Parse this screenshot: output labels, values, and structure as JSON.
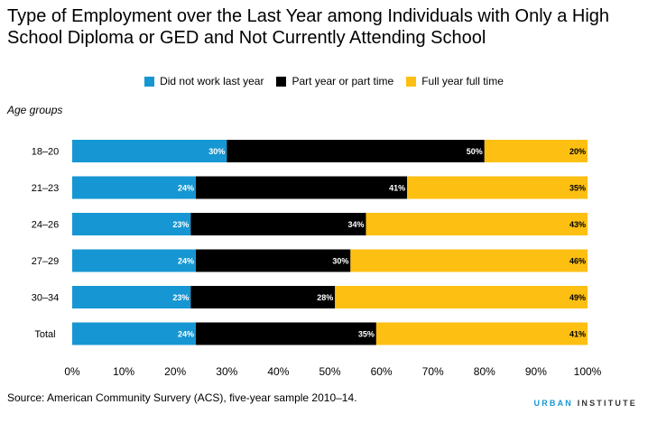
{
  "header": {
    "title": "Type of Employment over the Last Year among Individuals with Only a High School Diploma or GED and Not Currently Attending School"
  },
  "colors": {
    "did_not_work": "#1696d2",
    "part_year": "#000000",
    "full_year": "#fdbf11"
  },
  "chart_data": {
    "type": "bar",
    "orientation": "horizontal",
    "stacked": true,
    "title": "Type of Employment over the Last Year among Individuals with Only a High School Diploma or GED and Not Currently Attending School",
    "ylabel": "Age groups",
    "xlabel": "",
    "xlim": [
      0,
      100
    ],
    "x_ticks": [
      "0%",
      "10%",
      "20%",
      "30%",
      "40%",
      "50%",
      "60%",
      "70%",
      "80%",
      "90%",
      "100%"
    ],
    "legend_position": "top-center",
    "grid": false,
    "categories": [
      "18–20",
      "21–23",
      "24–26",
      "27–29",
      "30–34",
      "Total"
    ],
    "series": [
      {
        "name": "Did not work last year",
        "color": "#1696d2",
        "label_color": "#ffffff",
        "values": [
          30,
          24,
          23,
          24,
          23,
          24
        ]
      },
      {
        "name": "Part year or part time",
        "color": "#000000",
        "label_color": "#ffffff",
        "values": [
          50,
          41,
          34,
          30,
          28,
          35
        ]
      },
      {
        "name": "Full year full time",
        "color": "#fdbf11",
        "label_color": "#000000",
        "values": [
          20,
          35,
          43,
          46,
          49,
          41
        ]
      }
    ]
  },
  "footer": {
    "source": "Source: American Community Survery (ACS), five-year sample 2010–14.",
    "brand_urban": "URBAN",
    "brand_institute": " INSTITUTE"
  }
}
